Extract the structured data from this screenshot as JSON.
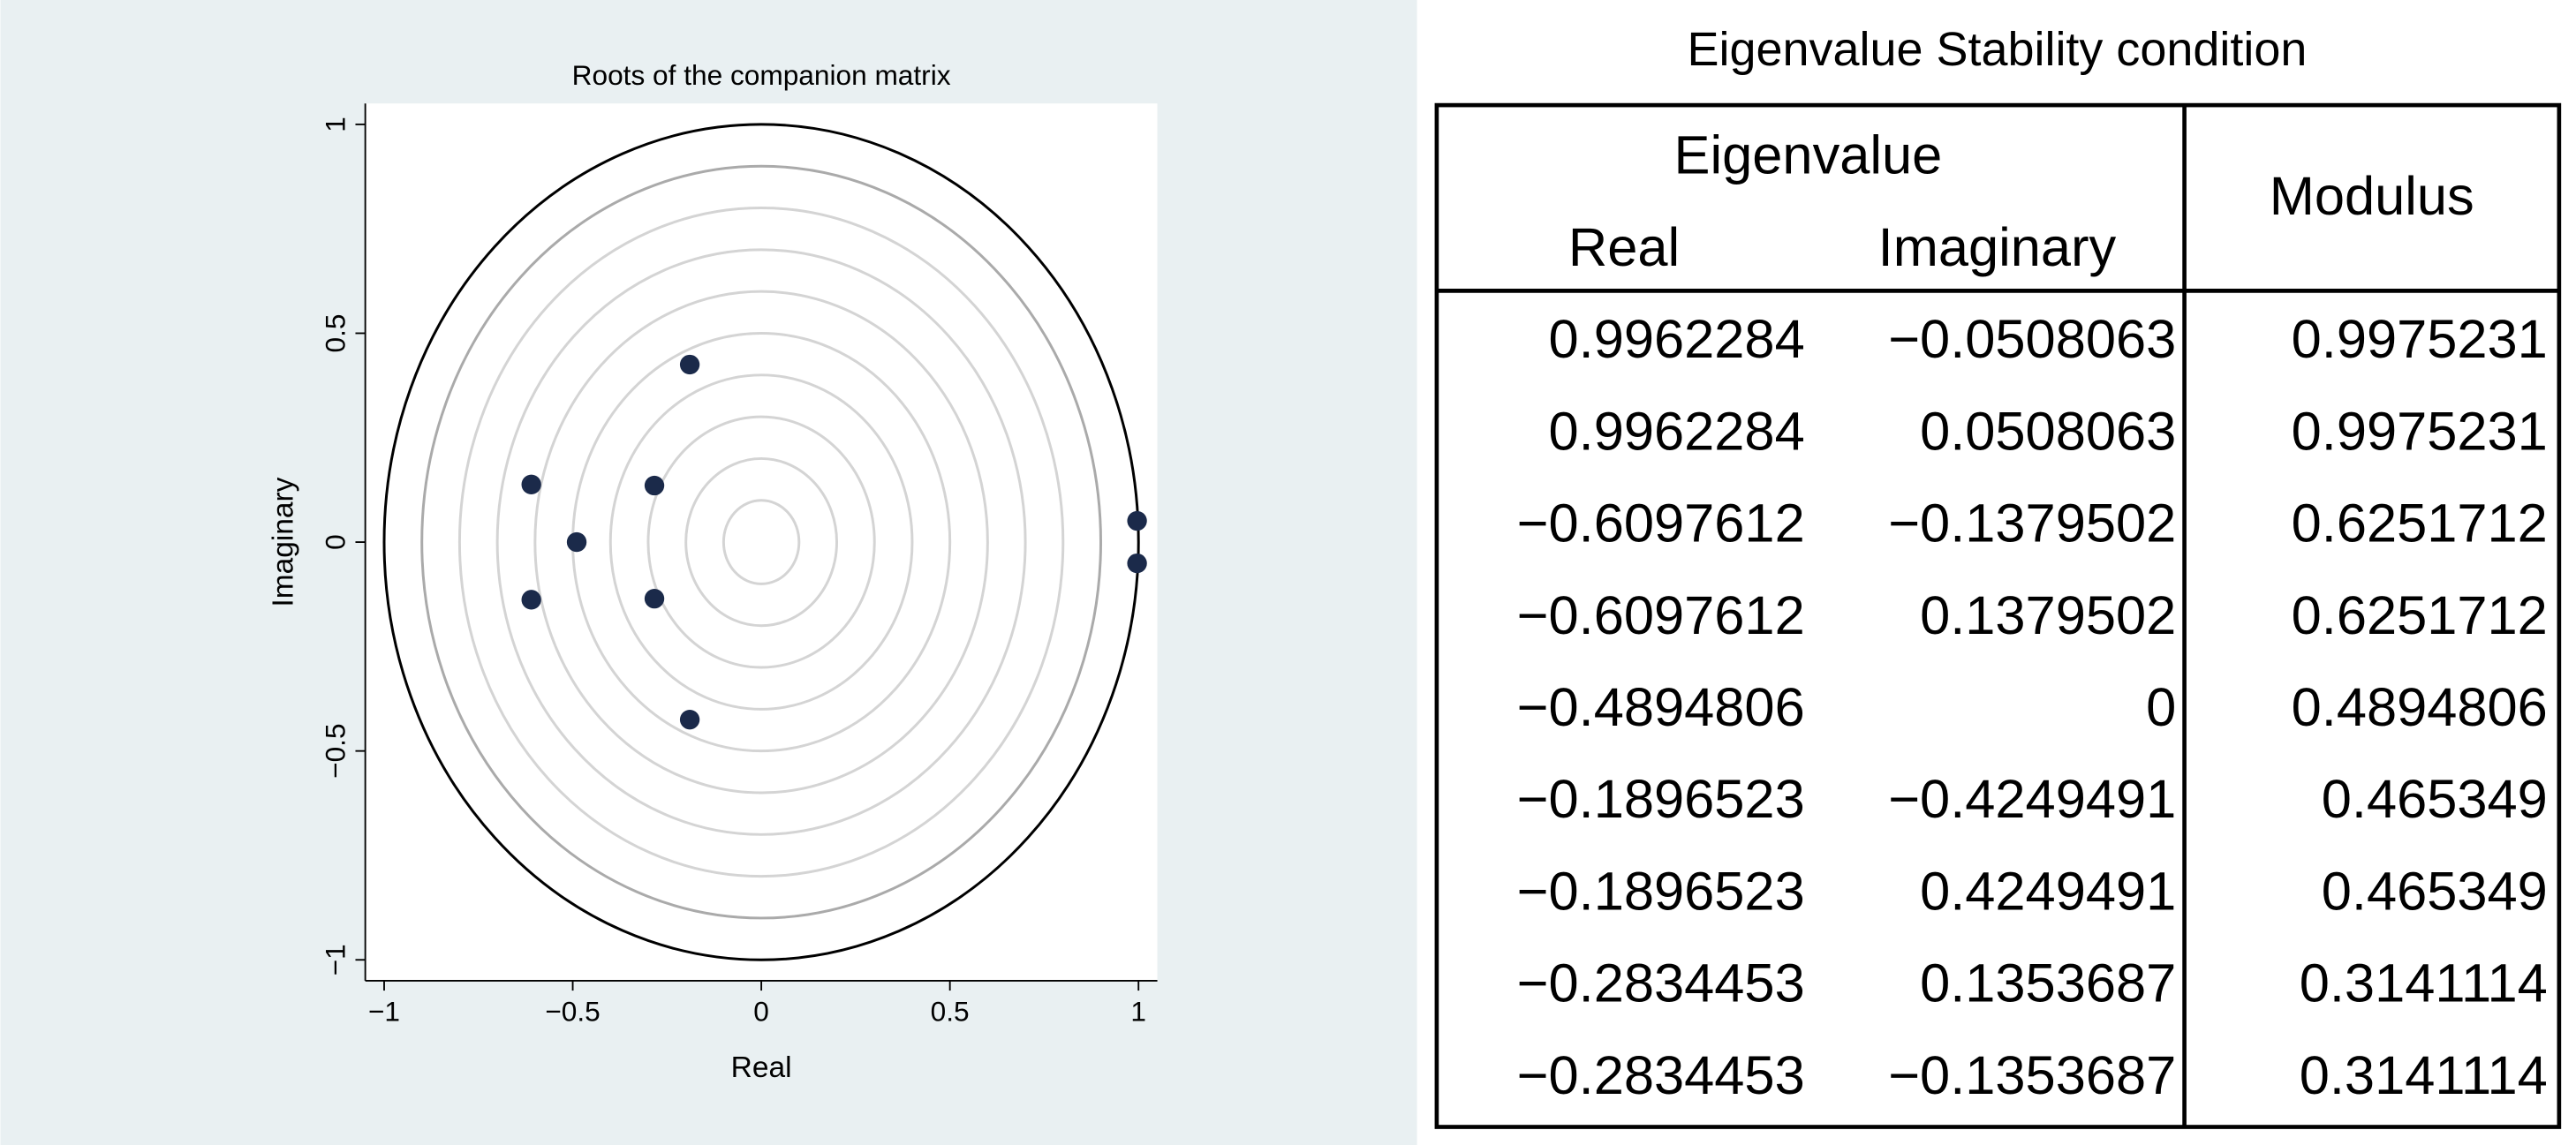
{
  "chart_data": {
    "type": "scatter",
    "title": "Roots of the companion matrix",
    "x_label": "Real",
    "y_label": "Imaginary",
    "x": [
      0.9962284,
      0.9962284,
      -0.6097612,
      -0.6097612,
      -0.4894806,
      -0.1896523,
      -0.1896523,
      -0.2834453,
      -0.2834453
    ],
    "values": [
      -0.0508063,
      0.0508063,
      -0.1379502,
      0.1379502,
      0,
      -0.4249491,
      0.4249491,
      0.1353687,
      -0.1353687
    ],
    "color": "#1b2a4a",
    "xlim": [
      -1.05,
      1.05
    ],
    "ylim": [
      -1.05,
      1.05
    ],
    "xticks": [
      {
        "value": -1,
        "label": "−1"
      },
      {
        "value": -0.5,
        "label": "−0.5"
      },
      0,
      0.5,
      1
    ],
    "yticks": [
      {
        "value": -1,
        "label": "−1"
      },
      {
        "value": -0.5,
        "label": "−0.5"
      },
      0,
      0.5,
      1
    ]
  },
  "table": {
    "title": "Eigenvalue Stability condition",
    "group_header": "Eigenvalue",
    "columns": [
      "Real",
      "Imaginary",
      "Modulus"
    ],
    "rows": [
      [
        "0.9962284",
        "−0.0508063",
        "0.9975231"
      ],
      [
        "0.9962284",
        "0.0508063",
        "0.9975231"
      ],
      [
        "−0.6097612",
        "−0.1379502",
        "0.6251712"
      ],
      [
        "−0.6097612",
        "0.1379502",
        "0.6251712"
      ],
      [
        "−0.4894806",
        "0",
        "0.4894806"
      ],
      [
        "−0.1896523",
        "−0.4249491",
        "0.465349"
      ],
      [
        "−0.1896523",
        "0.4249491",
        "0.465349"
      ],
      [
        "−0.2834453",
        "0.1353687",
        "0.3141114"
      ],
      [
        "−0.2834453",
        "−0.1353687",
        "0.3141114"
      ]
    ]
  }
}
